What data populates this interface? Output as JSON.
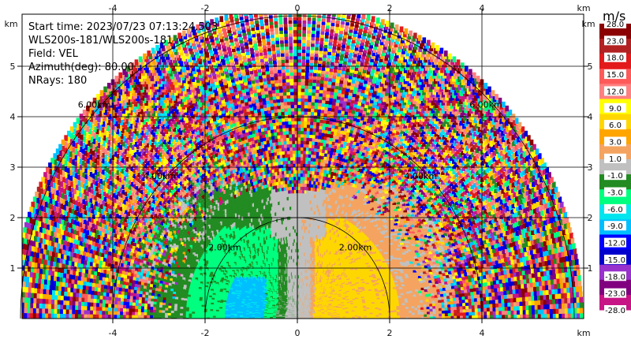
{
  "info": {
    "start_time": "Start time: 2023/07/23 07:13:24.503",
    "instrument": "WLS200s-181/WLS200s-181",
    "field": "Field: VEL",
    "azimuth": "Azimuth(deg): 80.00",
    "nrays": "NRays: 180"
  },
  "colorbar": {
    "unit": "m/s",
    "labels": [
      "28.0",
      "23.0",
      "18.0",
      "15.0",
      "12.0",
      "9.0",
      "6.0",
      "3.0",
      "1.0",
      "-1.0",
      "-3.0",
      "-6.0",
      "-9.0",
      "-12.0",
      "-15.0",
      "-18.0",
      "-23.0",
      "-28.0"
    ],
    "colors": [
      "#8b0000",
      "#b22222",
      "#e31a1c",
      "#ff5a5a",
      "#ff8080",
      "#ffff00",
      "#ffd700",
      "#ffa500",
      "#f4a460",
      "#c0c0c0",
      "#228b22",
      "#00ff7f",
      "#00e5ee",
      "#00bfff",
      "#0000ff",
      "#0000cd",
      "#9932cc",
      "#800080",
      "#c71585"
    ]
  },
  "chart_data": {
    "type": "heatmap",
    "title": "",
    "xlabel": "",
    "ylabel": "",
    "x_unit": "km",
    "y_unit": "km",
    "xlim": [
      -6.2,
      6.2
    ],
    "ylim": [
      0,
      5.9
    ],
    "x_ticks": [
      -4,
      -2,
      0,
      2,
      4
    ],
    "y_ticks": [
      1,
      2,
      3,
      4,
      5
    ],
    "range_rings": [
      {
        "radius_km": 2,
        "label": "2.00km"
      },
      {
        "radius_km": 4,
        "label": "4.00km"
      },
      {
        "radius_km": 6,
        "label": "6.00km"
      }
    ],
    "max_range_km": 6.2,
    "field": "VEL",
    "vmin": -28,
    "vmax": 28
  }
}
